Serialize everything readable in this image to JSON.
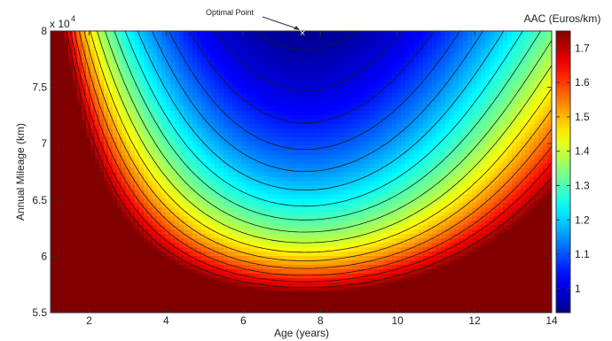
{
  "chart_data": {
    "type": "heatmap",
    "title": "",
    "xlabel": "Age (years)",
    "ylabel": "Annual Mileage (km)",
    "y_multiplier_label": "x 10",
    "y_multiplier_exponent": "4",
    "colorbar_label": "AAC (Euros/km)",
    "xlim": [
      1,
      14
    ],
    "ylim": [
      5.5,
      8
    ],
    "x_ticks": [
      "2",
      "4",
      "6",
      "8",
      "10",
      "12",
      "14"
    ],
    "y_ticks": [
      "5.5",
      "6",
      "6.5",
      "7",
      "7.5",
      "8"
    ],
    "colorbar_range": [
      0.93,
      1.75
    ],
    "colorbar_ticks": [
      "1",
      "1.1",
      "1.2",
      "1.3",
      "1.4",
      "1.5",
      "1.6",
      "1.7"
    ],
    "contour_levels": [
      0.95,
      1.0,
      1.05,
      1.1,
      1.15,
      1.2,
      1.25,
      1.3,
      1.35,
      1.4,
      1.45,
      1.5,
      1.55,
      1.6,
      1.65,
      1.7
    ],
    "optimal_point": {
      "label": "Optimal Point",
      "x": 7.6,
      "y": 8.0
    },
    "colormap": "jet",
    "grid": false
  }
}
